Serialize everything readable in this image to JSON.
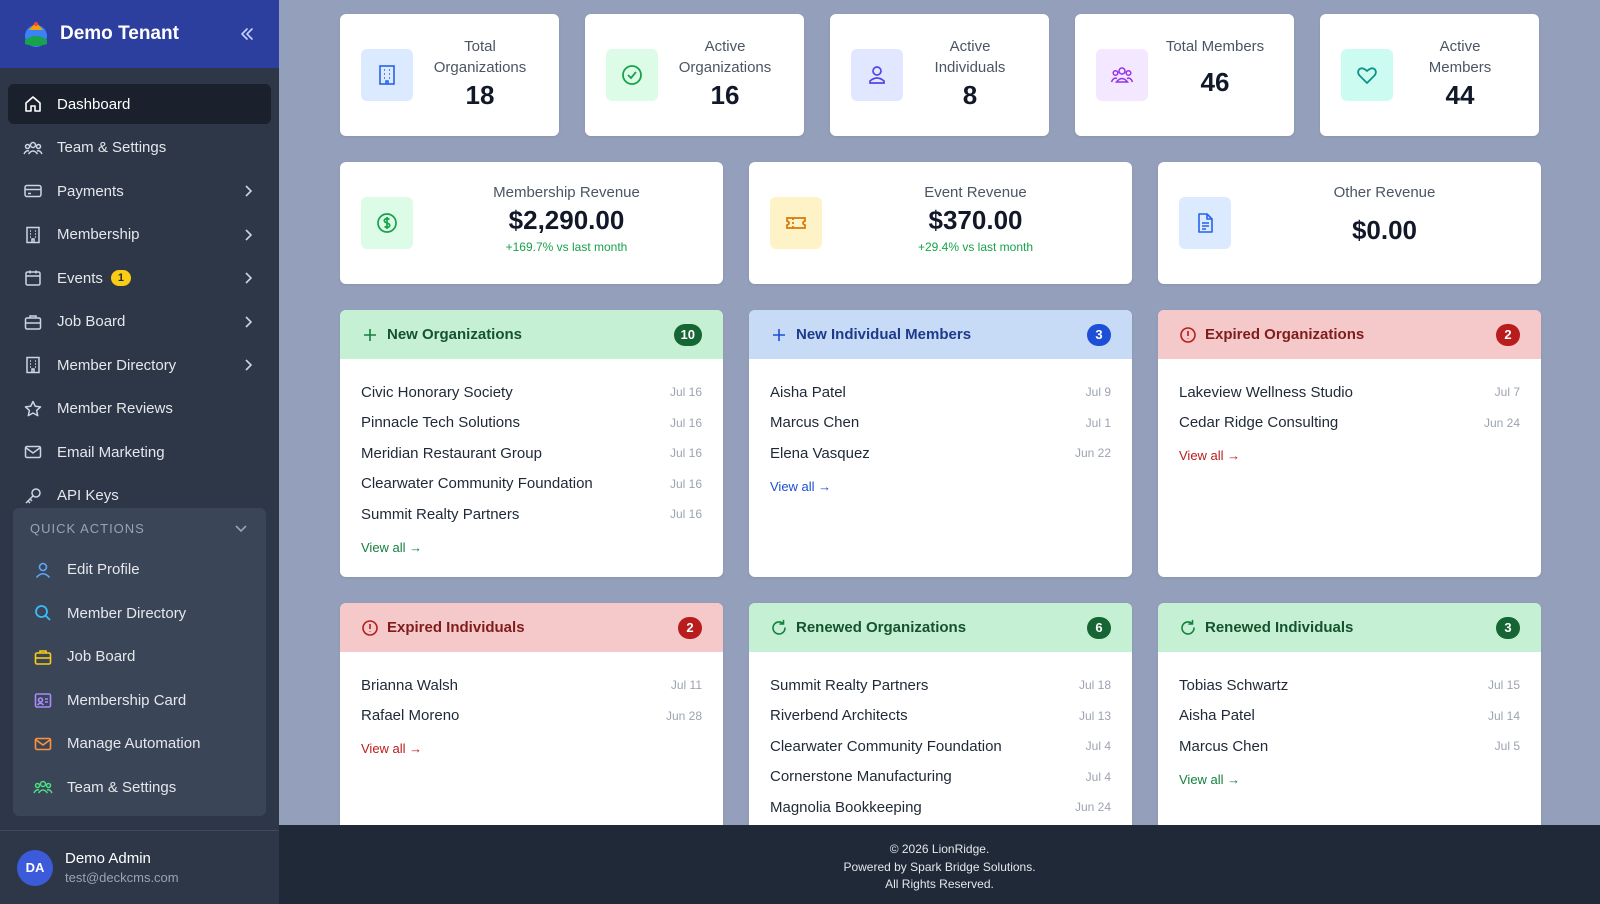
{
  "sidebar": {
    "brand": "Demo Tenant",
    "nav": [
      {
        "label": "Dashboard"
      },
      {
        "label": "Team & Settings"
      },
      {
        "label": "Payments"
      },
      {
        "label": "Membership"
      },
      {
        "label": "Events",
        "badge": "1"
      },
      {
        "label": "Job Board"
      },
      {
        "label": "Member Directory"
      },
      {
        "label": "Member Reviews"
      },
      {
        "label": "Email Marketing"
      },
      {
        "label": "API Keys"
      }
    ],
    "quick_actions": {
      "heading": "QUICK ACTIONS",
      "items": [
        {
          "label": "Edit Profile"
        },
        {
          "label": "Member Directory"
        },
        {
          "label": "Job Board"
        },
        {
          "label": "Membership Card"
        },
        {
          "label": "Manage Automation"
        },
        {
          "label": "Team & Settings"
        }
      ]
    },
    "user": {
      "initials": "DA",
      "name": "Demo Admin",
      "email": "test@deckcms.com"
    }
  },
  "stats": [
    {
      "label_line1": "Total",
      "label_line2": "Organizations",
      "value": "18"
    },
    {
      "label_line1": "Active",
      "label_line2": "Organizations",
      "value": "16"
    },
    {
      "label_line1": "Active",
      "label_line2": "Individuals",
      "value": "8"
    },
    {
      "label_line1": "Total Members",
      "label_line2": "",
      "value": "46"
    },
    {
      "label_line1": "Active",
      "label_line2": "Members",
      "value": "44"
    }
  ],
  "revenue": [
    {
      "label": "Membership Revenue",
      "value": "$2,290.00",
      "delta": "+169.7% vs last month"
    },
    {
      "label": "Event Revenue",
      "value": "$370.00",
      "delta": "+29.4% vs last month"
    },
    {
      "label": "Other Revenue",
      "value": "$0.00",
      "delta": ""
    }
  ],
  "panels": {
    "new_orgs": {
      "title": "New Organizations",
      "count": "10",
      "view_all": "View all →",
      "rows": [
        {
          "name": "Civic Honorary Society",
          "date": "Jul 16"
        },
        {
          "name": "Pinnacle Tech Solutions",
          "date": "Jul 16"
        },
        {
          "name": "Meridian Restaurant Group",
          "date": "Jul 16"
        },
        {
          "name": "Clearwater Community Foundation",
          "date": "Jul 16"
        },
        {
          "name": "Summit Realty Partners",
          "date": "Jul 16"
        }
      ]
    },
    "new_individuals": {
      "title": "New Individual Members",
      "count": "3",
      "view_all": "View all →",
      "rows": [
        {
          "name": "Aisha Patel",
          "date": "Jul 9"
        },
        {
          "name": "Marcus Chen",
          "date": "Jul 1"
        },
        {
          "name": "Elena Vasquez",
          "date": "Jun 22"
        }
      ]
    },
    "expired_orgs": {
      "title": "Expired Organizations",
      "count": "2",
      "view_all": "View all →",
      "rows": [
        {
          "name": "Lakeview Wellness Studio",
          "date": "Jul 7"
        },
        {
          "name": "Cedar Ridge Consulting",
          "date": "Jun 24"
        }
      ]
    },
    "expired_individuals": {
      "title": "Expired Individuals",
      "count": "2",
      "view_all": "View all →",
      "rows": [
        {
          "name": "Brianna Walsh",
          "date": "Jul 11"
        },
        {
          "name": "Rafael Moreno",
          "date": "Jun 28"
        }
      ]
    },
    "renewed_orgs": {
      "title": "Renewed Organizations",
      "count": "6",
      "rows": [
        {
          "name": "Summit Realty Partners",
          "date": "Jul 18"
        },
        {
          "name": "Riverbend Architects",
          "date": "Jul 13"
        },
        {
          "name": "Clearwater Community Foundation",
          "date": "Jul 4"
        },
        {
          "name": "Cornerstone Manufacturing",
          "date": "Jul 4"
        },
        {
          "name": "Magnolia Bookkeeping",
          "date": "Jun 24"
        }
      ]
    },
    "renewed_individuals": {
      "title": "Renewed Individuals",
      "count": "3",
      "view_all": "View all →",
      "rows": [
        {
          "name": "Tobias Schwartz",
          "date": "Jul 15"
        },
        {
          "name": "Aisha Patel",
          "date": "Jul 14"
        },
        {
          "name": "Marcus Chen",
          "date": "Jul 5"
        }
      ]
    }
  },
  "footer": {
    "line1": "© 2026 LionRidge.",
    "line2": "Powered by Spark Bridge Solutions.",
    "line3": "All Rights Reserved."
  },
  "colors": {
    "sidebar_bg": "#2d3748",
    "brand_bg": "#2d3f9e",
    "green_badge": "#166534",
    "blue_badge": "#1d4ed8",
    "red_badge": "#b91c1c"
  }
}
